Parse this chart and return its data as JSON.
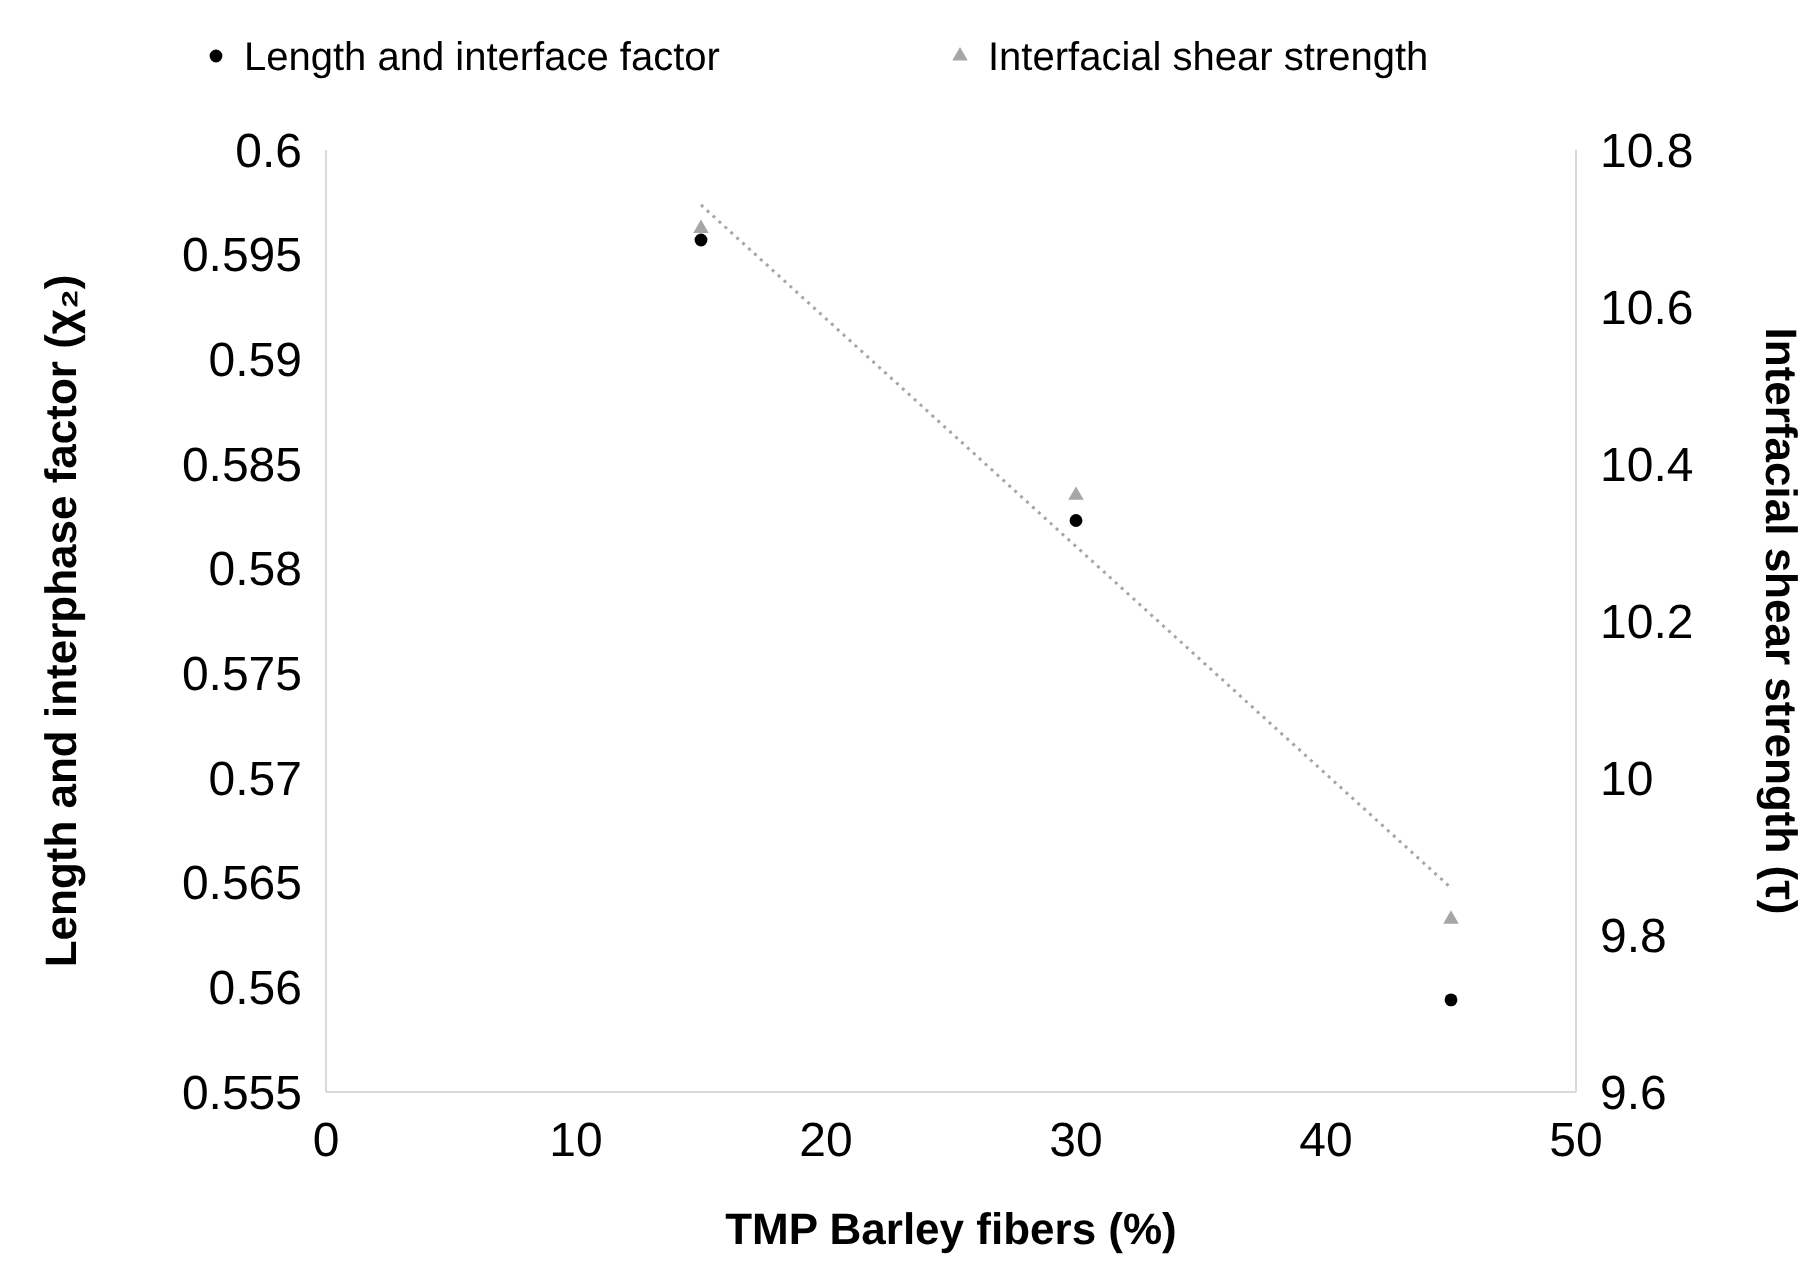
{
  "chart_data": {
    "type": "scatter",
    "xlabel": "TMP Barley fibers (%)",
    "ylabel": "Length and interphase factor (χ₂)",
    "y2label": "Interfacial shear strength (τ)",
    "x": [
      15,
      30,
      45
    ],
    "series": [
      {
        "name": "Length and interface factor",
        "color": "#000000",
        "values": [
          0.5957,
          0.5823,
          0.5594
        ],
        "marker": "circle"
      },
      {
        "name": "Interfacial shear strength",
        "color": "#a6a6a6",
        "values": [
          10.7,
          10.36,
          9.82
        ],
        "marker": "triangle",
        "axis": "y2"
      },
      {
        "type": "line",
        "color": "#a6a6a6",
        "x": [
          15,
          45
        ],
        "values": [
          10.73,
          9.86
        ],
        "axis": "y2",
        "line_style": "dotted",
        "marker": "none"
      }
    ],
    "xlim": [
      0,
      50
    ],
    "xticks": [
      0,
      10,
      20,
      30,
      40,
      50
    ],
    "ylim": [
      0.555,
      0.6
    ],
    "yticks": [
      0.555,
      0.56,
      0.565,
      0.57,
      0.575,
      0.58,
      0.585,
      0.59,
      0.595,
      0.6
    ],
    "y2lim": [
      9.6,
      10.8
    ],
    "y2ticks": [
      9.6,
      9.8,
      10,
      10.2,
      10.4,
      10.6,
      10.8
    ],
    "legend": "top",
    "grid": false
  }
}
